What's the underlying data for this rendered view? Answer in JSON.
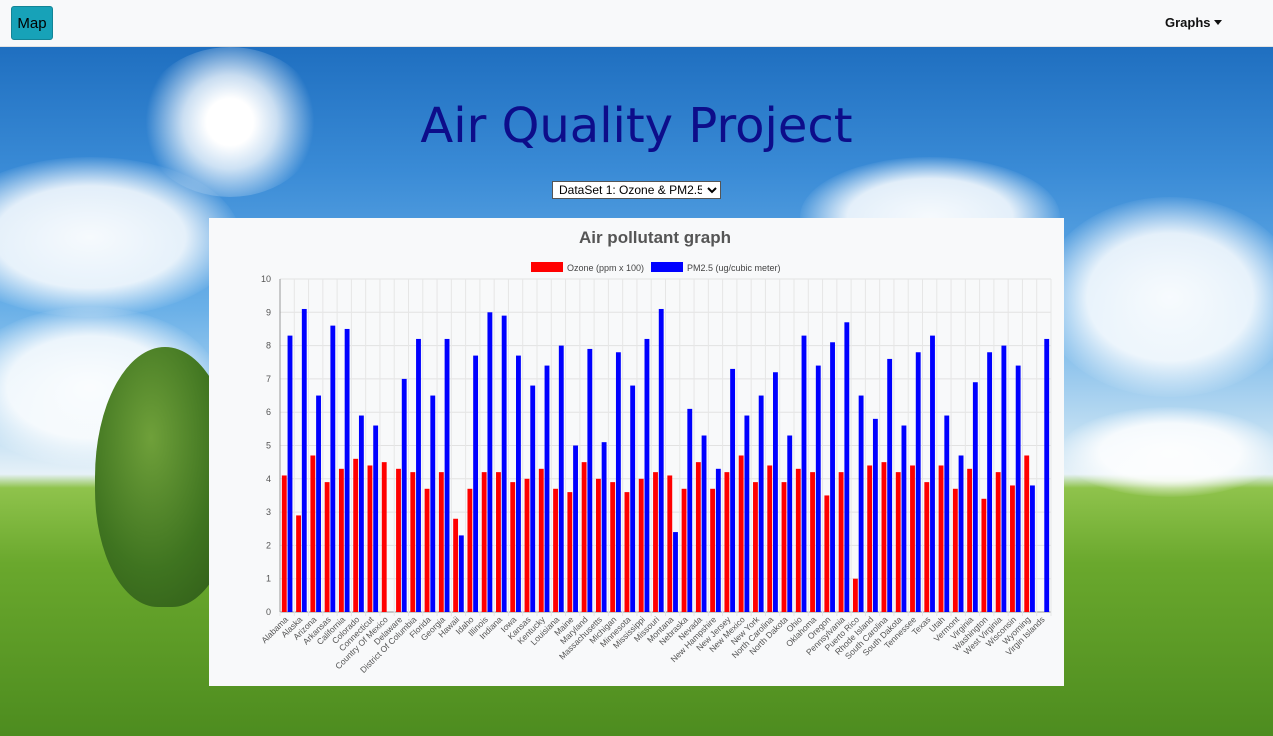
{
  "navbar": {
    "map_label": "Map",
    "graphs_label": "Graphs"
  },
  "hero": {
    "title": "Air Quality Project"
  },
  "dataset_select": {
    "selected": "DataSet 1: Ozone & PM2.5"
  },
  "colors": {
    "ozone": "#ff0000",
    "pm25": "#0000ff",
    "title": "#0d0d8a",
    "map_button": "#17a2b8"
  },
  "chart_data": {
    "type": "bar",
    "title": "Air pollutant graph",
    "legend_position": "top",
    "grid": true,
    "ylim": [
      0,
      10
    ],
    "yticks": [
      0,
      1,
      2,
      3,
      4,
      5,
      6,
      7,
      8,
      9,
      10
    ],
    "categories": [
      "Alabama",
      "Alaska",
      "Arizona",
      "Arkansas",
      "California",
      "Colorado",
      "Connecticut",
      "Country Of Mexico",
      "Delaware",
      "District Of Columbia",
      "Florida",
      "Georgia",
      "Hawaii",
      "Idaho",
      "Illinois",
      "Indiana",
      "Iowa",
      "Kansas",
      "Kentucky",
      "Louisiana",
      "Maine",
      "Maryland",
      "Massachusetts",
      "Michigan",
      "Minnesota",
      "Mississippi",
      "Missouri",
      "Montana",
      "Nebraska",
      "Nevada",
      "New Hampshire",
      "New Jersey",
      "New Mexico",
      "New York",
      "North Carolina",
      "North Dakota",
      "Ohio",
      "Oklahoma",
      "Oregon",
      "Pennsylvania",
      "Puerto Rico",
      "Rhode Island",
      "South Carolina",
      "South Dakota",
      "Tennessee",
      "Texas",
      "Utah",
      "Vermont",
      "Virginia",
      "Washington",
      "West Virginia",
      "Wisconsin",
      "Wyoming",
      "Virgin Islands"
    ],
    "series": [
      {
        "name": "Ozone (ppm x 100)",
        "color": "#ff0000",
        "values": [
          4.1,
          2.9,
          4.7,
          3.9,
          4.3,
          4.6,
          4.4,
          4.5,
          4.3,
          4.2,
          3.7,
          4.2,
          2.8,
          3.7,
          4.2,
          4.2,
          3.9,
          4.0,
          4.3,
          3.7,
          3.6,
          4.5,
          4.0,
          3.9,
          3.6,
          4.0,
          4.2,
          4.1,
          3.7,
          4.5,
          3.7,
          4.2,
          4.7,
          3.9,
          4.4,
          3.9,
          4.3,
          4.2,
          3.5,
          4.2,
          1.0,
          4.4,
          4.5,
          4.2,
          4.4,
          3.9,
          4.4,
          3.7,
          4.3,
          3.4,
          4.2,
          3.8,
          4.7,
          null
        ]
      },
      {
        "name": "PM2.5 (ug/cubic meter)",
        "color": "#0000ff",
        "values": [
          8.3,
          9.1,
          6.5,
          8.6,
          8.5,
          5.9,
          5.6,
          null,
          7.0,
          8.2,
          6.5,
          8.2,
          2.3,
          7.7,
          9.0,
          8.9,
          7.7,
          6.8,
          7.4,
          8.0,
          5.0,
          7.9,
          5.1,
          7.8,
          6.8,
          8.2,
          9.1,
          2.4,
          6.1,
          5.3,
          4.3,
          7.3,
          5.9,
          6.5,
          7.2,
          5.3,
          8.3,
          7.4,
          8.1,
          8.7,
          6.5,
          5.8,
          7.6,
          5.6,
          7.8,
          8.3,
          5.9,
          4.7,
          6.9,
          7.8,
          8.0,
          7.4,
          3.8,
          8.2
        ]
      }
    ]
  }
}
